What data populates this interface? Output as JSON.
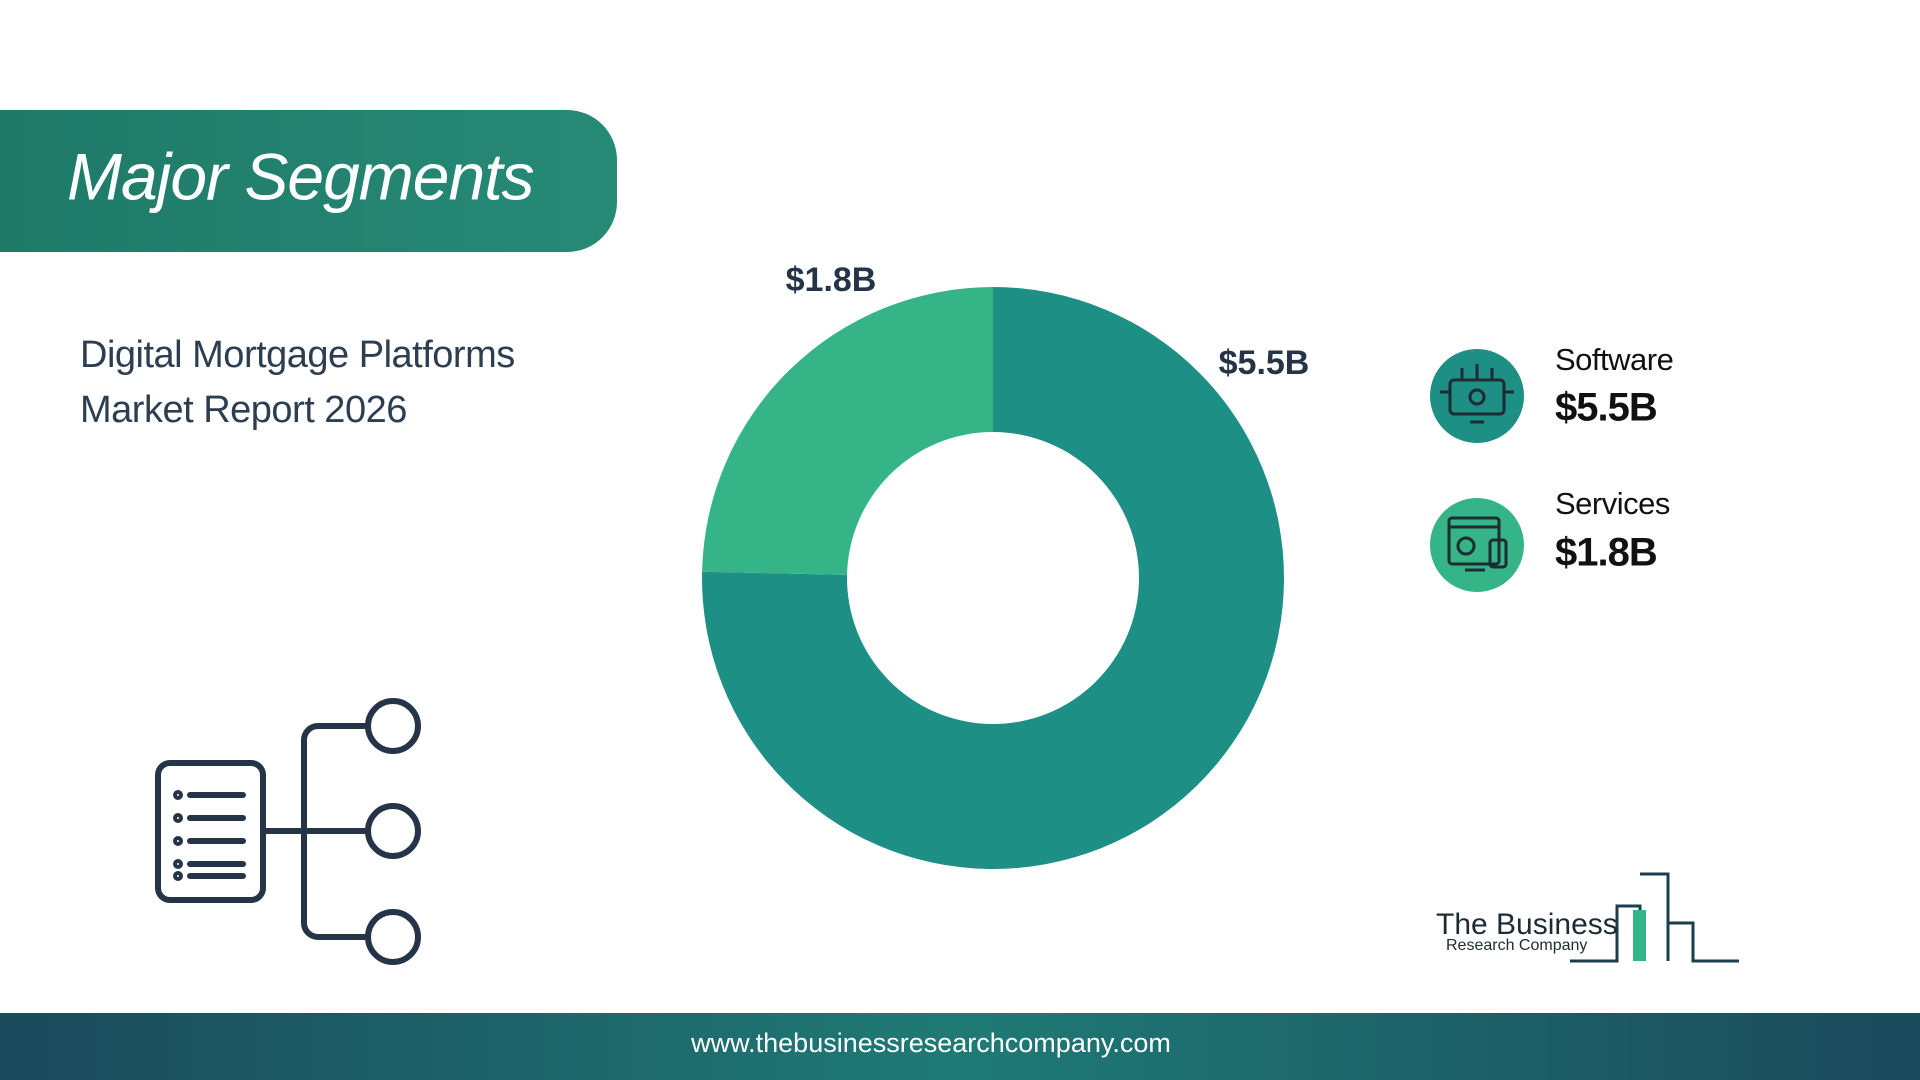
{
  "title": "Major Segments",
  "subtitle": "Digital Mortgage Platforms Market Report 2026",
  "chart_data": {
    "type": "donut",
    "categories": [
      "Software",
      "Services"
    ],
    "values": [
      5.5,
      1.8
    ],
    "value_labels": [
      "$5.5B",
      "$1.8B"
    ],
    "colors": [
      "#1e8f85",
      "#35b587"
    ]
  },
  "logo": {
    "line1": "The Business",
    "line2": "Research Company"
  },
  "footer": {
    "url": "www.thebusinessresearchcompany.com"
  }
}
